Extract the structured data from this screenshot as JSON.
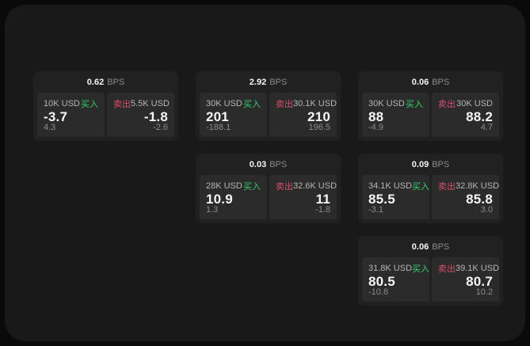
{
  "labels": {
    "bps_unit": "BPS",
    "buy": "买入",
    "sell": "卖出"
  },
  "colors": {
    "background": "#0a0a0a",
    "window": "#191919",
    "card": "#212121",
    "panel": "#2b2b2b",
    "buy_green": "#35cf6b",
    "sell_red": "#d94f6d",
    "primary_text": "#f5f5f5",
    "muted_text": "#8c8c8c"
  },
  "cards": [
    {
      "bps": "0.62",
      "buy": {
        "notional": "10K USD",
        "price": "-3.7",
        "change": "4.3"
      },
      "sell": {
        "notional": "5.5K USD",
        "price": "-1.8",
        "change": "-2.6"
      }
    },
    {
      "bps": "2.92",
      "buy": {
        "notional": "30K USD",
        "price": "201",
        "change": "-188.1"
      },
      "sell": {
        "notional": "30.1K USD",
        "price": "210",
        "change": "196.5"
      }
    },
    {
      "bps": "0.06",
      "buy": {
        "notional": "30K USD",
        "price": "88",
        "change": "-4.9"
      },
      "sell": {
        "notional": "30K USD",
        "price": "88.2",
        "change": "4.7"
      }
    },
    {
      "bps": "0.03",
      "buy": {
        "notional": "28K USD",
        "price": "10.9",
        "change": "1.3"
      },
      "sell": {
        "notional": "32.6K USD",
        "price": "11",
        "change": "-1.8"
      }
    },
    {
      "bps": "0.09",
      "buy": {
        "notional": "34.1K USD",
        "price": "85.5",
        "change": "-3.1"
      },
      "sell": {
        "notional": "32.8K USD",
        "price": "85.8",
        "change": "3.0"
      }
    },
    {
      "bps": "0.06",
      "buy": {
        "notional": "31.8K USD",
        "price": "80.5",
        "change": "-10.8"
      },
      "sell": {
        "notional": "39.1K USD",
        "price": "80.7",
        "change": "10.2"
      }
    }
  ]
}
